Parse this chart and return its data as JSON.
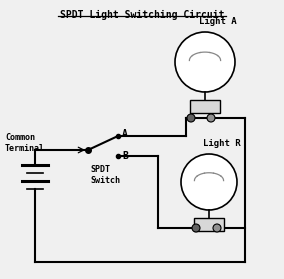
{
  "title": "SPDT Light Switching Circuit",
  "bg_color": "#f0f0f0",
  "line_width": 1.5,
  "labels": {
    "title": "SPDT Light Switching Circuit",
    "light_a": "Light A",
    "light_b": "Light R",
    "common": "Common\nTerminal",
    "spdt": "SPDT\nSwitch",
    "point_a": "A",
    "point_b": "B"
  },
  "colors": {
    "wire": "#000000",
    "bulb_fill": "#ffffff",
    "connector_dark": "#606060",
    "connector_light": "#909090",
    "rect_fill": "#d8d8d8"
  }
}
